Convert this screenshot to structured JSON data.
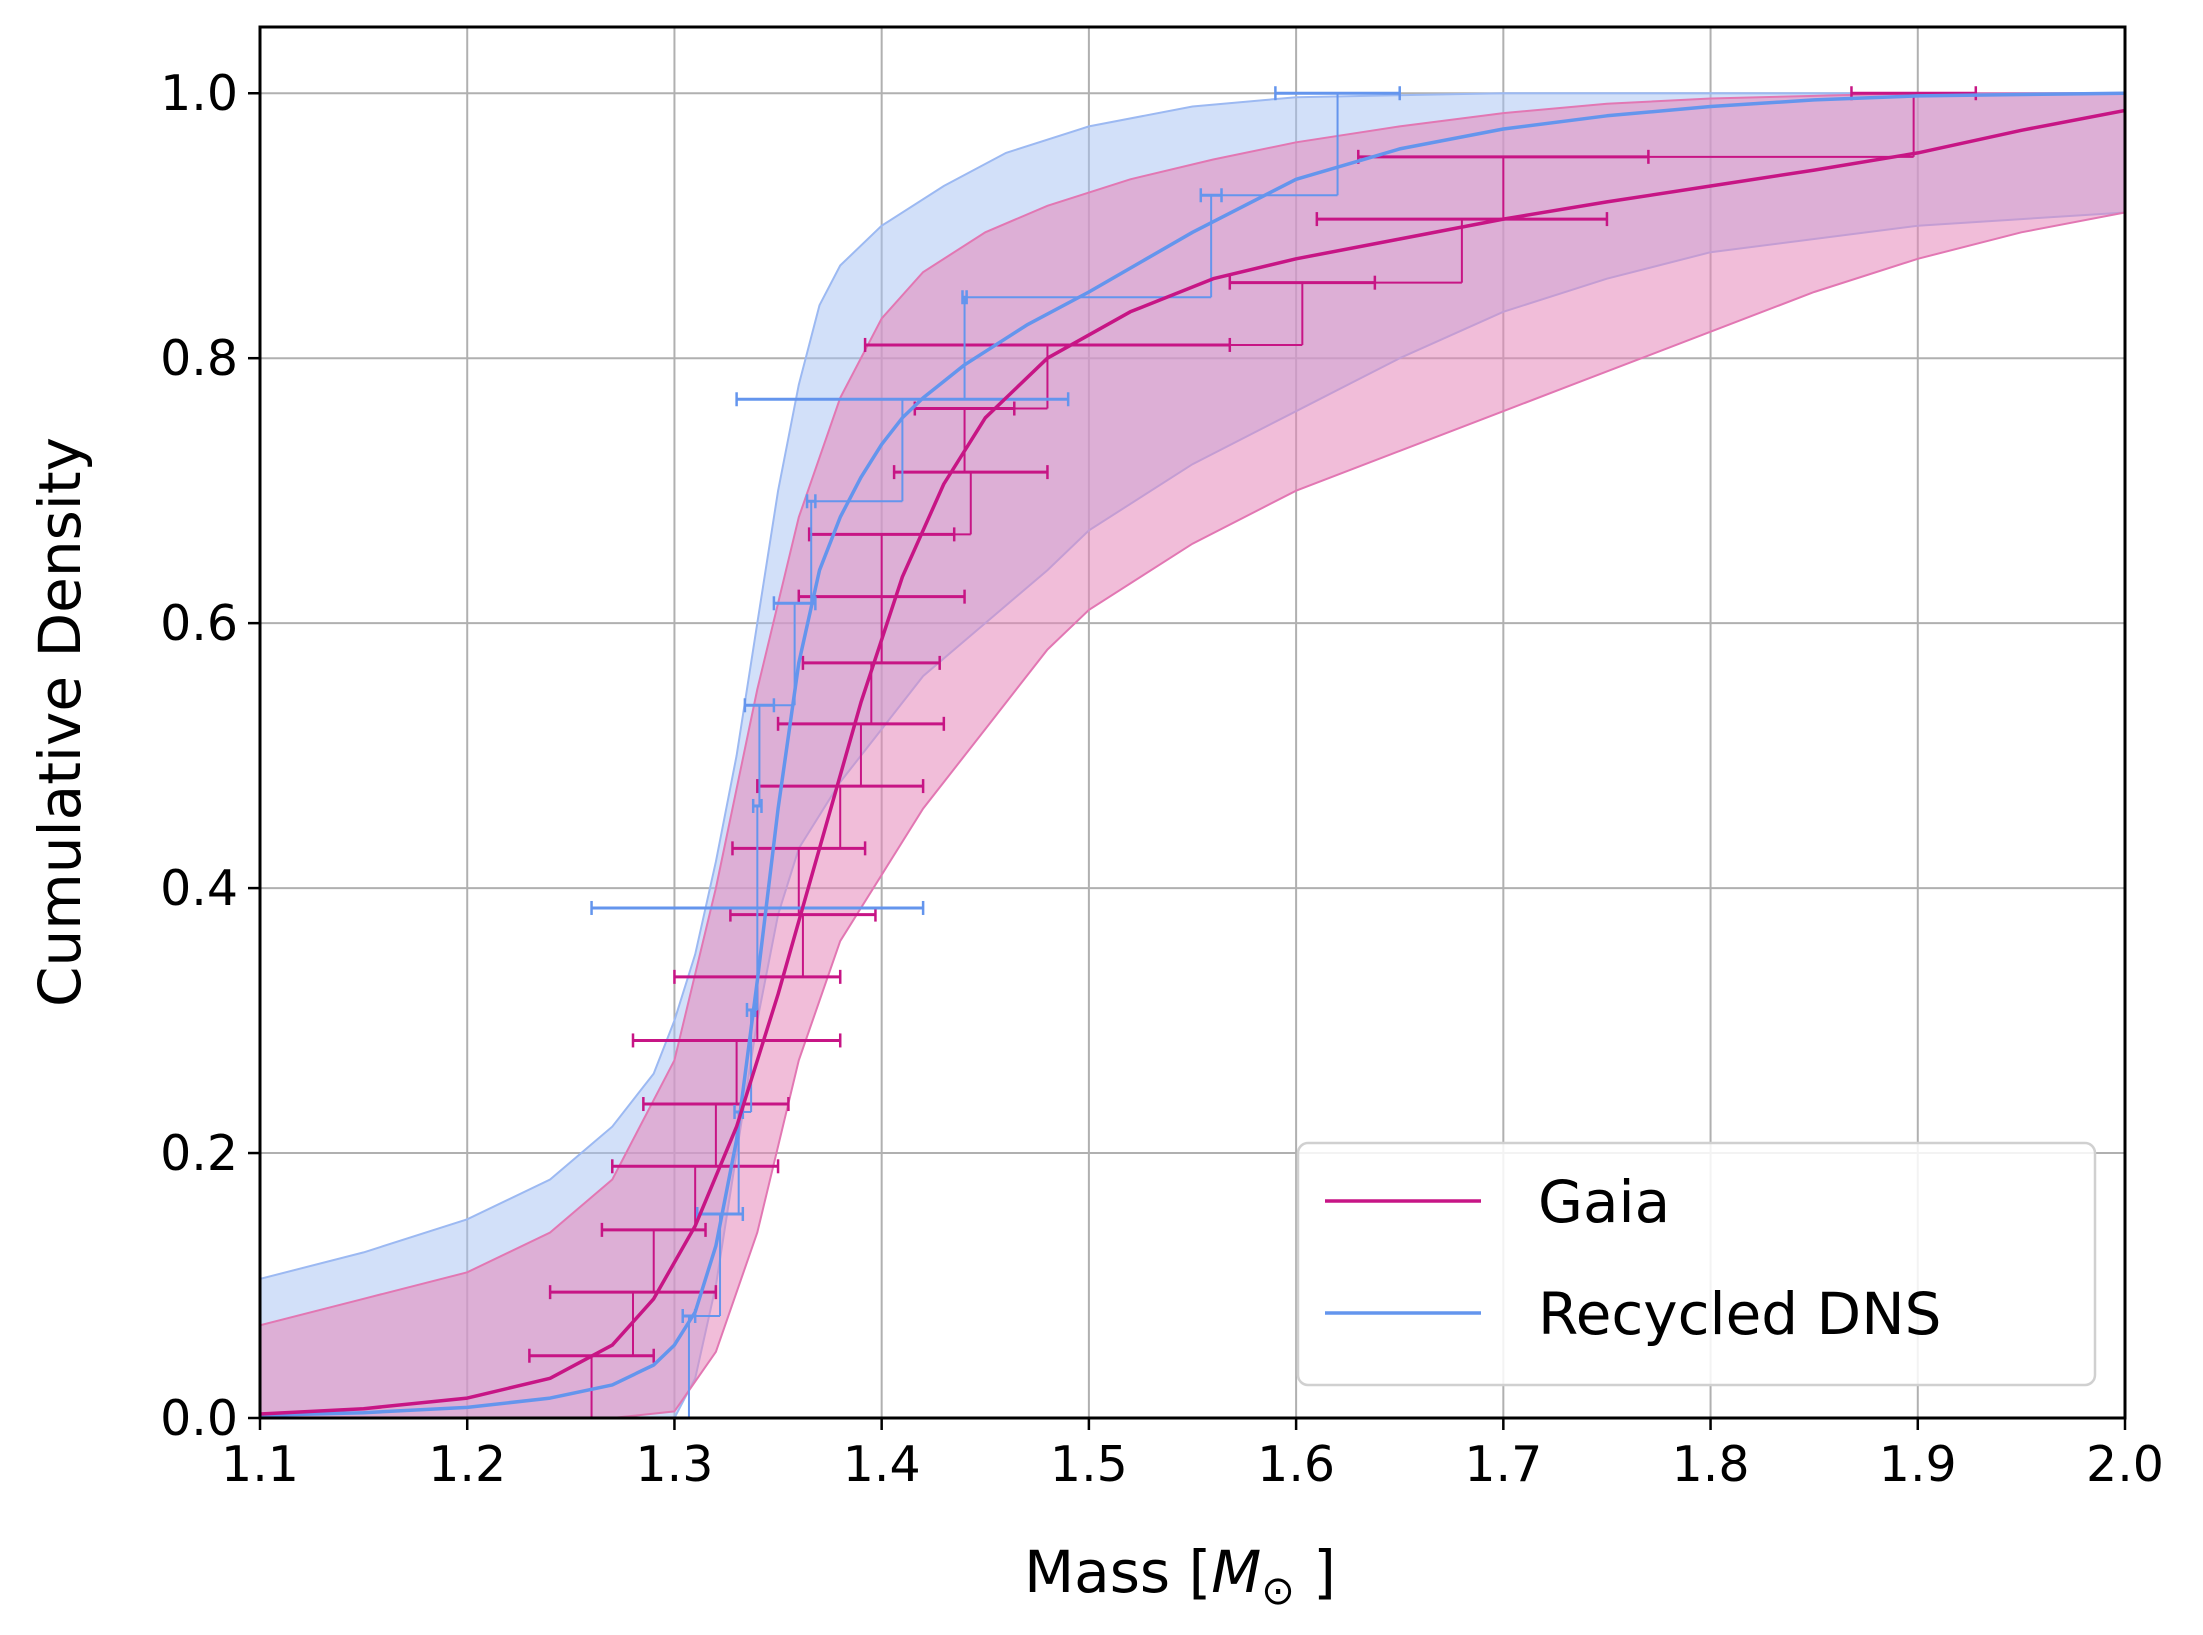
{
  "chart_data": {
    "type": "line",
    "title": "",
    "xlabel": "Mass [M⊙]",
    "xlabel_main": "Mass [",
    "xlabel_symbol": "M",
    "xlabel_subscript": "⊙",
    "xlabel_close": "]",
    "ylabel": "Cumulative Density",
    "xlim": [
      1.1,
      2.0
    ],
    "ylim": [
      0.0,
      1.05
    ],
    "grid": true,
    "legend_position": "bottom-right",
    "x_ticks": [
      {
        "value": 1.1,
        "label": "1.1"
      },
      {
        "value": 1.2,
        "label": "1.2"
      },
      {
        "value": 1.3,
        "label": "1.3"
      },
      {
        "value": 1.4,
        "label": "1.4"
      },
      {
        "value": 1.5,
        "label": "1.5"
      },
      {
        "value": 1.6,
        "label": "1.6"
      },
      {
        "value": 1.7,
        "label": "1.7"
      },
      {
        "value": 1.8,
        "label": "1.8"
      },
      {
        "value": 1.9,
        "label": "1.9"
      },
      {
        "value": 2.0,
        "label": "2.0"
      }
    ],
    "y_ticks": [
      {
        "value": 0.0,
        "label": "0.0"
      },
      {
        "value": 0.2,
        "label": "0.2"
      },
      {
        "value": 0.4,
        "label": "0.4"
      },
      {
        "value": 0.6,
        "label": "0.6"
      },
      {
        "value": 0.8,
        "label": "0.8"
      },
      {
        "value": 1.0,
        "label": "1.0"
      }
    ],
    "series": [
      {
        "name": "Gaia",
        "color": "#C71585",
        "band_color": "#E687B9",
        "band_edge_color": "#E277B3",
        "curve": {
          "x": [
            1.1,
            1.15,
            1.2,
            1.24,
            1.27,
            1.29,
            1.31,
            1.33,
            1.35,
            1.37,
            1.39,
            1.41,
            1.43,
            1.45,
            1.48,
            1.52,
            1.56,
            1.6,
            1.65,
            1.7,
            1.75,
            1.8,
            1.85,
            1.9,
            1.95,
            2.0
          ],
          "y": [
            0.003,
            0.007,
            0.015,
            0.03,
            0.055,
            0.09,
            0.145,
            0.22,
            0.32,
            0.43,
            0.54,
            0.635,
            0.705,
            0.755,
            0.8,
            0.835,
            0.86,
            0.875,
            0.89,
            0.905,
            0.918,
            0.93,
            0.942,
            0.955,
            0.972,
            0.987
          ]
        },
        "band_upper": {
          "x": [
            1.1,
            1.15,
            1.2,
            1.24,
            1.27,
            1.3,
            1.32,
            1.34,
            1.36,
            1.38,
            1.4,
            1.42,
            1.45,
            1.48,
            1.52,
            1.56,
            1.6,
            1.65,
            1.7,
            1.75,
            1.8,
            1.85,
            1.9,
            1.95,
            2.0
          ],
          "y": [
            0.07,
            0.09,
            0.11,
            0.14,
            0.18,
            0.27,
            0.4,
            0.55,
            0.68,
            0.77,
            0.83,
            0.865,
            0.895,
            0.915,
            0.935,
            0.95,
            0.963,
            0.975,
            0.985,
            0.992,
            0.996,
            0.998,
            1.0,
            1.0,
            1.0
          ]
        },
        "band_lower": {
          "x": [
            1.1,
            1.2,
            1.27,
            1.3,
            1.32,
            1.34,
            1.36,
            1.38,
            1.4,
            1.42,
            1.45,
            1.48,
            1.5,
            1.55,
            1.6,
            1.65,
            1.7,
            1.75,
            1.8,
            1.85,
            1.9,
            1.95,
            2.0
          ],
          "y": [
            0.0,
            0.0,
            0.0,
            0.005,
            0.05,
            0.14,
            0.27,
            0.36,
            0.41,
            0.46,
            0.52,
            0.58,
            0.61,
            0.66,
            0.7,
            0.73,
            0.76,
            0.79,
            0.82,
            0.85,
            0.875,
            0.895,
            0.91
          ]
        },
        "step_points": [
          {
            "x": 1.26,
            "xerr": 0.03,
            "y": 0.047
          },
          {
            "x": 1.28,
            "xerr": 0.04,
            "y": 0.095
          },
          {
            "x": 1.29,
            "xerr": 0.025,
            "y": 0.142
          },
          {
            "x": 1.31,
            "xerr": 0.04,
            "y": 0.19
          },
          {
            "x": 1.32,
            "xerr": 0.035,
            "y": 0.237
          },
          {
            "x": 1.33,
            "xerr": 0.05,
            "y": 0.285
          },
          {
            "x": 1.34,
            "xerr": 0.04,
            "y": 0.333
          },
          {
            "x": 1.362,
            "xerr": 0.035,
            "y": 0.38
          },
          {
            "x": 1.36,
            "xerr": 0.032,
            "y": 0.43
          },
          {
            "x": 1.38,
            "xerr": 0.04,
            "y": 0.477
          },
          {
            "x": 1.39,
            "xerr": 0.04,
            "y": 0.524
          },
          {
            "x": 1.395,
            "xerr": 0.033,
            "y": 0.57
          },
          {
            "x": 1.4,
            "xerr": 0.04,
            "y": 0.62
          },
          {
            "x": 1.4,
            "xerr": 0.035,
            "y": 0.667
          },
          {
            "x": 1.443,
            "xerr": 0.037,
            "y": 0.714
          },
          {
            "x": 1.44,
            "xerr": 0.024,
            "y": 0.762
          },
          {
            "x": 1.48,
            "xerr": 0.088,
            "y": 0.81
          },
          {
            "x": 1.603,
            "xerr": 0.035,
            "y": 0.857
          },
          {
            "x": 1.68,
            "xerr": 0.07,
            "y": 0.905
          },
          {
            "x": 1.7,
            "xerr": 0.07,
            "y": 0.952
          },
          {
            "x": 1.898,
            "xerr": 0.03,
            "y": 1.0
          }
        ]
      },
      {
        "name": "Recycled DNS",
        "color": "#6495ED",
        "band_color": "#A6C1F3",
        "band_edge_color": "#9CB9F2",
        "curve": {
          "x": [
            1.1,
            1.15,
            1.2,
            1.24,
            1.27,
            1.29,
            1.3,
            1.31,
            1.32,
            1.33,
            1.34,
            1.35,
            1.36,
            1.37,
            1.38,
            1.39,
            1.4,
            1.41,
            1.42,
            1.44,
            1.47,
            1.5,
            1.55,
            1.6,
            1.65,
            1.7,
            1.75,
            1.8,
            1.85,
            1.9,
            2.0
          ],
          "y": [
            0.002,
            0.004,
            0.008,
            0.015,
            0.025,
            0.04,
            0.055,
            0.08,
            0.13,
            0.21,
            0.33,
            0.46,
            0.57,
            0.64,
            0.68,
            0.71,
            0.735,
            0.755,
            0.77,
            0.795,
            0.825,
            0.85,
            0.895,
            0.935,
            0.958,
            0.973,
            0.983,
            0.99,
            0.995,
            0.998,
            1.0
          ]
        },
        "band_upper": {
          "x": [
            1.1,
            1.15,
            1.2,
            1.24,
            1.27,
            1.29,
            1.3,
            1.31,
            1.32,
            1.33,
            1.34,
            1.35,
            1.36,
            1.37,
            1.38,
            1.4,
            1.43,
            1.46,
            1.5,
            1.55,
            1.6,
            1.7,
            1.8,
            2.0
          ],
          "y": [
            0.105,
            0.125,
            0.15,
            0.18,
            0.22,
            0.26,
            0.3,
            0.35,
            0.42,
            0.5,
            0.6,
            0.7,
            0.78,
            0.84,
            0.87,
            0.9,
            0.93,
            0.955,
            0.975,
            0.99,
            0.997,
            1.0,
            1.0,
            1.0
          ]
        },
        "band_lower": {
          "x": [
            1.1,
            1.28,
            1.3,
            1.31,
            1.32,
            1.33,
            1.34,
            1.35,
            1.36,
            1.38,
            1.4,
            1.42,
            1.45,
            1.48,
            1.5,
            1.55,
            1.6,
            1.65,
            1.7,
            1.75,
            1.8,
            1.85,
            1.9,
            1.95,
            2.0
          ],
          "y": [
            0.0,
            0.0,
            0.0,
            0.03,
            0.1,
            0.2,
            0.3,
            0.38,
            0.43,
            0.48,
            0.52,
            0.56,
            0.6,
            0.64,
            0.67,
            0.72,
            0.76,
            0.8,
            0.835,
            0.86,
            0.88,
            0.89,
            0.9,
            0.905,
            0.91
          ]
        },
        "step_points": [
          {
            "x": 1.307,
            "xerr": 0.003,
            "y": 0.077
          },
          {
            "x": 1.322,
            "xerr": 0.011,
            "y": 0.154
          },
          {
            "x": 1.331,
            "xerr": 0.002,
            "y": 0.231
          },
          {
            "x": 1.337,
            "xerr": 0.002,
            "y": 0.308
          },
          {
            "x": 1.34,
            "xerr": 0.08,
            "y": 0.385
          },
          {
            "x": 1.34,
            "xerr": 0.002,
            "y": 0.462
          },
          {
            "x": 1.341,
            "xerr": 0.007,
            "y": 0.538
          },
          {
            "x": 1.358,
            "xerr": 0.01,
            "y": 0.615
          },
          {
            "x": 1.366,
            "xerr": 0.002,
            "y": 0.692
          },
          {
            "x": 1.41,
            "xerr": 0.08,
            "y": 0.769
          },
          {
            "x": 1.44,
            "xerr": 0.001,
            "y": 0.846
          },
          {
            "x": 1.559,
            "xerr": 0.005,
            "y": 0.923
          },
          {
            "x": 1.62,
            "xerr": 0.03,
            "y": 1.0
          }
        ]
      }
    ]
  },
  "legend": {
    "items": [
      {
        "label": "Gaia",
        "color": "#C71585"
      },
      {
        "label": "Recycled DNS",
        "color": "#6495ED"
      }
    ]
  }
}
